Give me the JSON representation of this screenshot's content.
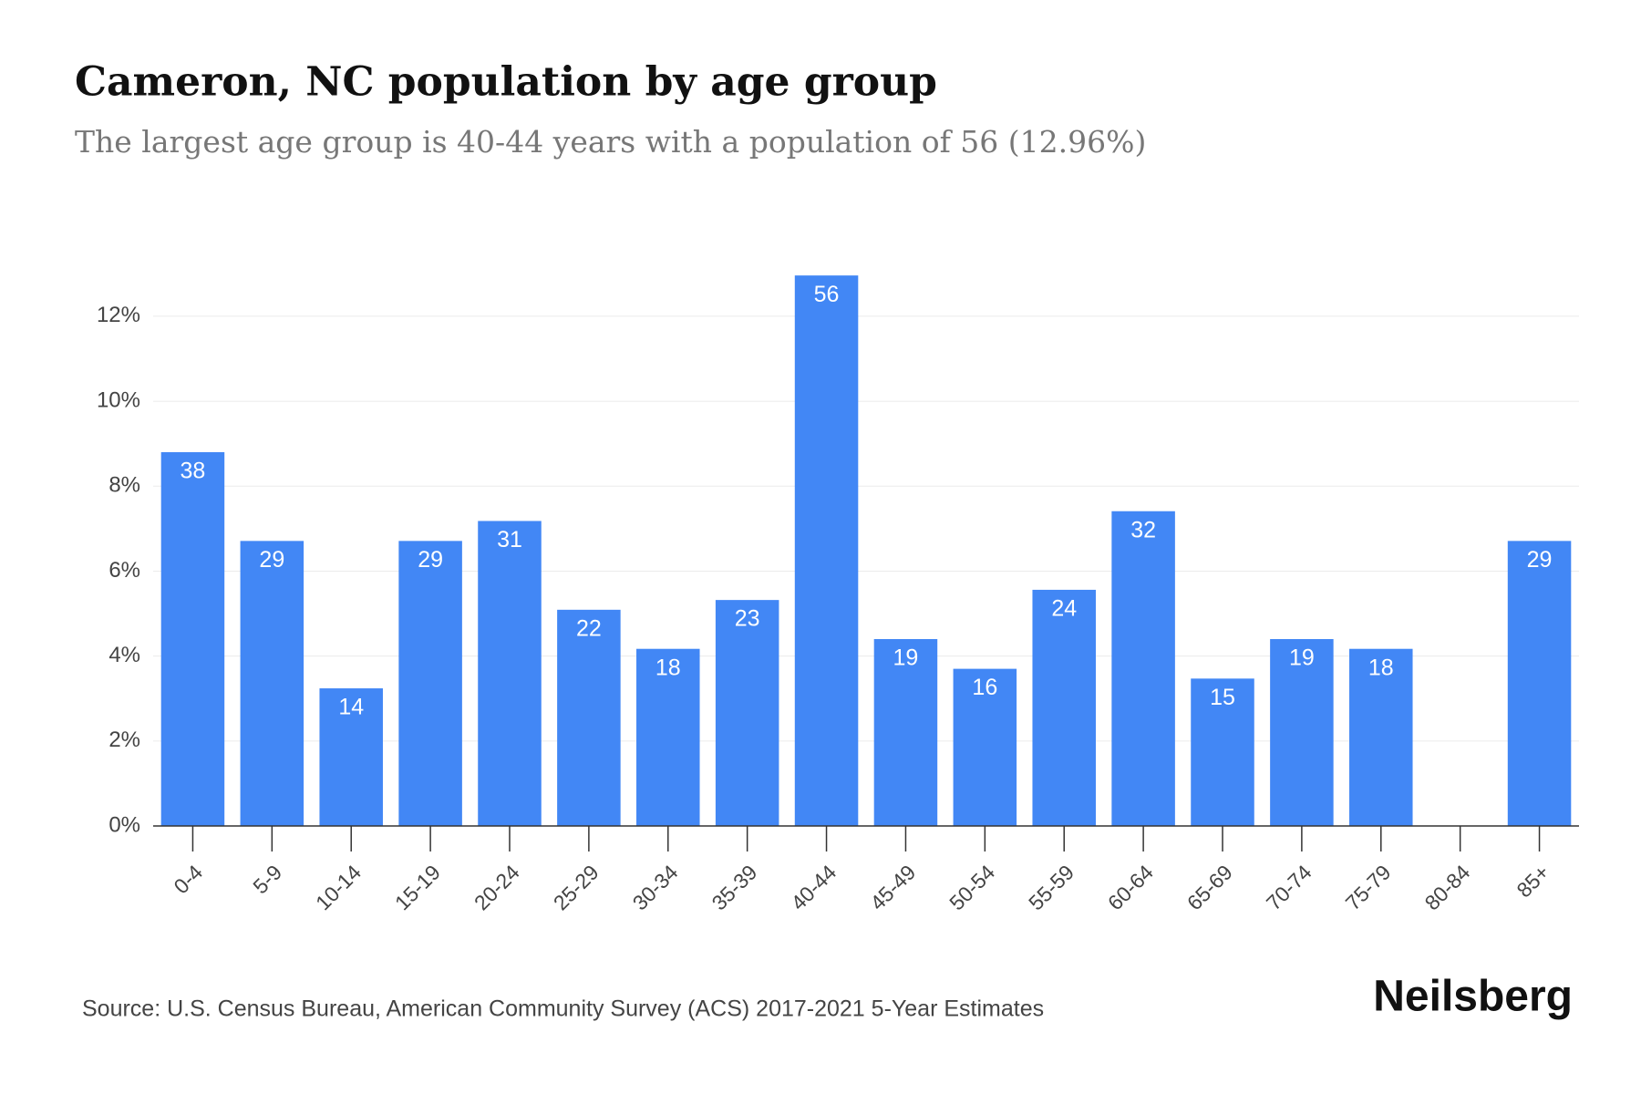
{
  "chart_data": {
    "type": "bar",
    "title": "Cameron, NC population by age group",
    "subtitle": "The largest age group is 40-44 years with a population of 56 (12.96%)",
    "source": "Source: U.S. Census Bureau, American Community Survey (ACS) 2017-2021 5-Year Estimates",
    "brand": "Neilsberg",
    "categories": [
      "0-4",
      "5-9",
      "10-14",
      "15-19",
      "20-24",
      "25-29",
      "30-34",
      "35-39",
      "40-44",
      "45-49",
      "50-54",
      "55-59",
      "60-64",
      "65-69",
      "70-74",
      "75-79",
      "80-84",
      "85+"
    ],
    "values": [
      8.8,
      6.71,
      3.24,
      6.71,
      7.18,
      5.09,
      4.17,
      5.32,
      12.96,
      4.4,
      3.7,
      5.56,
      7.41,
      3.47,
      4.4,
      4.17,
      0,
      6.71
    ],
    "populations": [
      38,
      29,
      14,
      29,
      31,
      22,
      18,
      23,
      56,
      19,
      16,
      24,
      32,
      15,
      19,
      18,
      null,
      29
    ],
    "color": "#4287f5",
    "ylim": [
      0,
      13.5
    ],
    "yticks": [
      {
        "value": 0,
        "label": "0%"
      },
      {
        "value": 2,
        "label": "2%"
      },
      {
        "value": 4,
        "label": "4%"
      },
      {
        "value": 6,
        "label": "6%"
      },
      {
        "value": 8,
        "label": "8%"
      },
      {
        "value": 10,
        "label": "10%"
      },
      {
        "value": 12,
        "label": "12%"
      }
    ],
    "grid": true
  }
}
